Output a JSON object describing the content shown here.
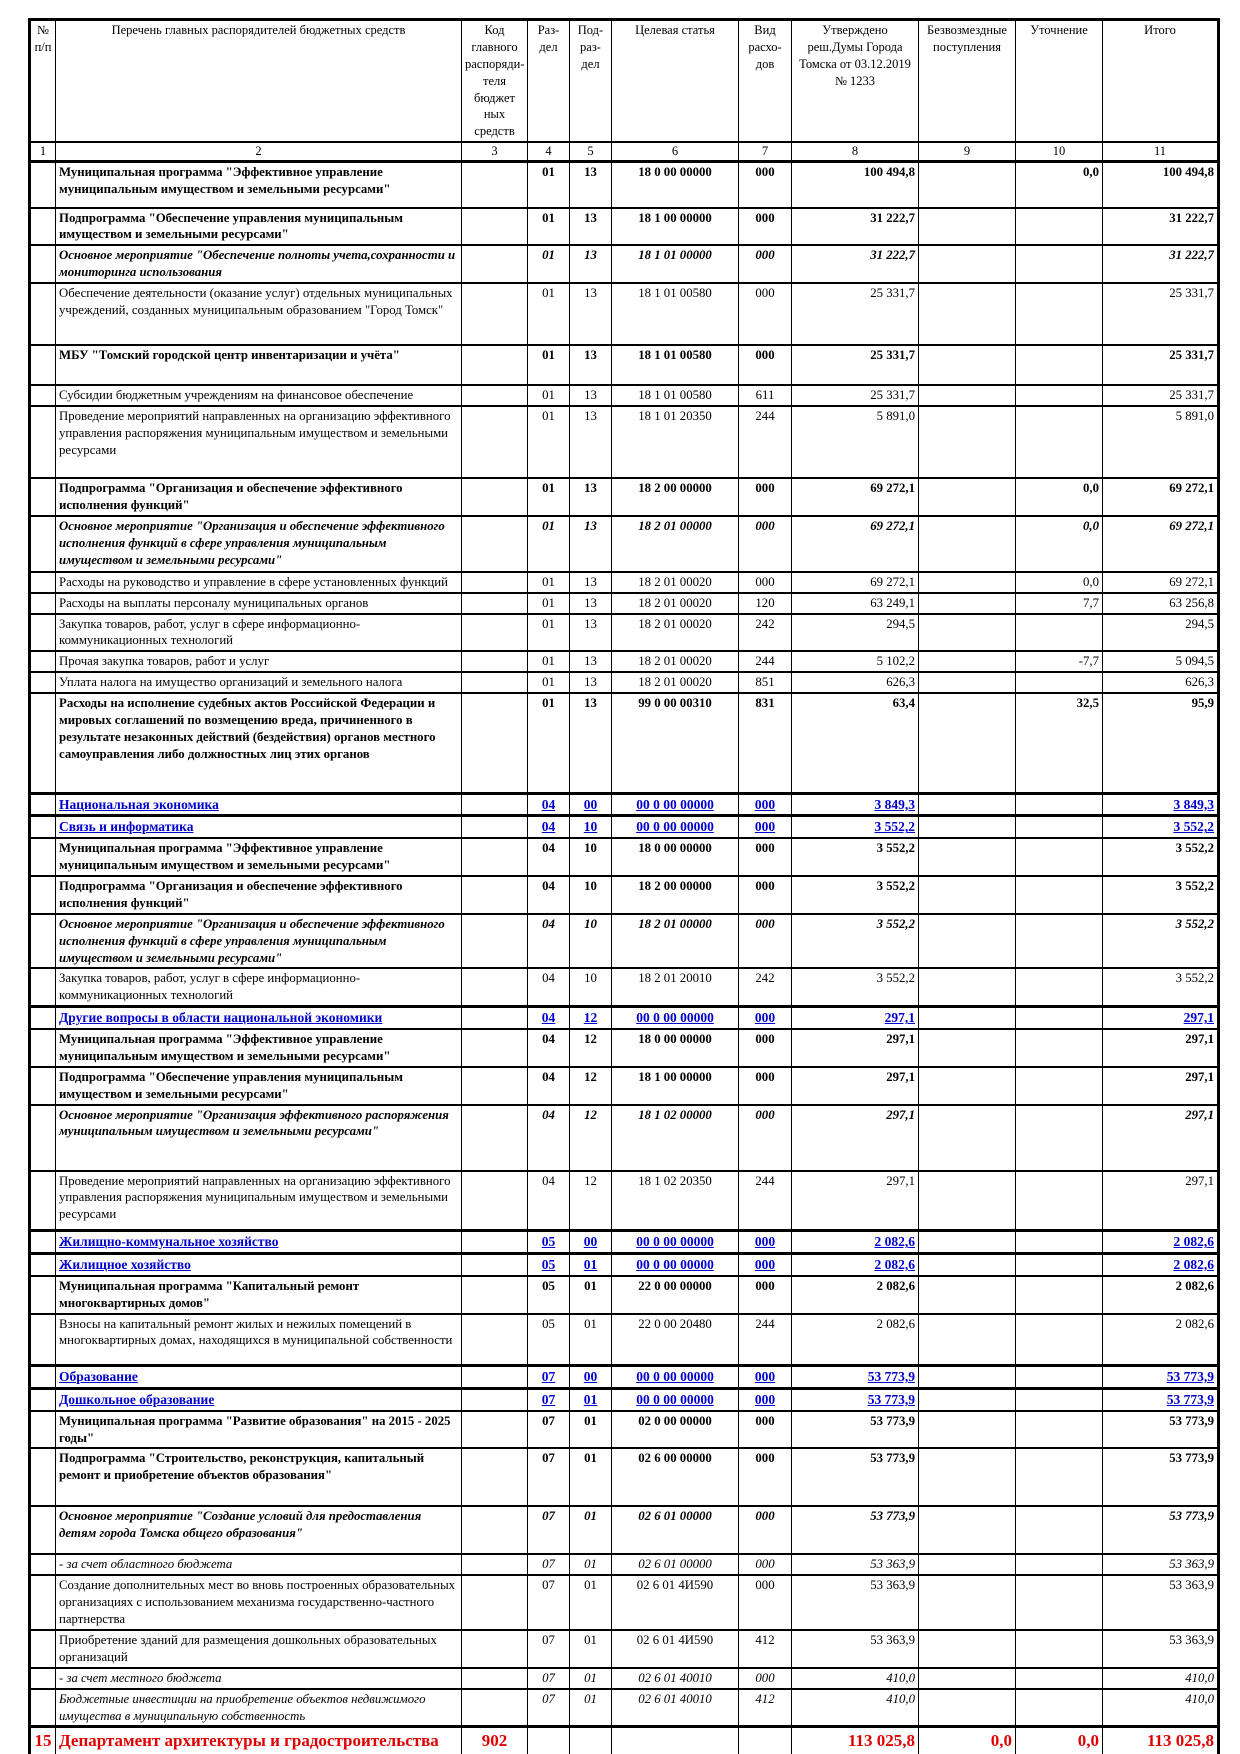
{
  "colors": {
    "section_blue": "#0000CE",
    "department_red": "#E10000",
    "grid": "#000000"
  },
  "table": {
    "header": {
      "cols": [
        {
          "label": "№ п/п",
          "num": "1"
        },
        {
          "label": "Перечень главных распорядителей бюджетных средств",
          "num": "2"
        },
        {
          "label": "Код главного распоряди- теля бюджет ных средств",
          "num": "3"
        },
        {
          "label": "Раз- дел",
          "num": "4"
        },
        {
          "label": "Под- раз- дел",
          "num": "5"
        },
        {
          "label": "Целевая статья",
          "num": "6"
        },
        {
          "label": "Вид расхо- дов",
          "num": "7"
        },
        {
          "label": "Утверждено реш.Думы Города Томска от 03.12.2019 № 1233",
          "num": "8"
        },
        {
          "label": "Безвозмездные поступления",
          "num": "9"
        },
        {
          "label": "Уточнение",
          "num": "10"
        },
        {
          "label": "Итого",
          "num": "11"
        }
      ]
    },
    "rows": [
      {
        "num": "",
        "name": "Муниципальная программа \"Эффективное управление муниципальным имуществом и земельными ресурсами\"",
        "code": "",
        "rz": "01",
        "pr": "13",
        "csr": "18 0 00 00000",
        "vr": "000",
        "approved": "100 494,8",
        "grants": "",
        "adj": "0,0",
        "total": "100 494,8",
        "style": "bold"
      },
      {
        "num": "",
        "name": "Подпрограмма \"Обеспечение управления муниципальным имуществом и земельными ресурсами\"",
        "code": "",
        "rz": "01",
        "pr": "13",
        "csr": "18 1 00 00000",
        "vr": "000",
        "approved": "31 222,7",
        "grants": "",
        "adj": "",
        "total": "31 222,7",
        "style": "bold"
      },
      {
        "num": "",
        "name": "Основное мероприятие \"Обеспечение полноты учета,сохранности и мониторинга использования",
        "code": "",
        "rz": "01",
        "pr": "13",
        "csr": "18 1 01 00000",
        "vr": "000",
        "approved": "31 222,7",
        "grants": "",
        "adj": "",
        "total": "31 222,7",
        "style": "bold-italic"
      },
      {
        "num": "",
        "name": "Обеспечение деятельности (оказание услуг) отдельных муниципальных учреждений, созданных муниципальным образованием \"Город Томск\"",
        "code": "",
        "rz": "01",
        "pr": "13",
        "csr": "18 1 01 00580",
        "vr": "000",
        "approved": "25 331,7",
        "grants": "",
        "adj": "",
        "total": "25 331,7",
        "style": "normal"
      },
      {
        "num": "",
        "name": "МБУ \"Томский городской центр инвентаризации и учёта\"",
        "code": "",
        "rz": "01",
        "pr": "13",
        "csr": "18 1 01 00580",
        "vr": "000",
        "approved": "25 331,7",
        "grants": "",
        "adj": "",
        "total": "25 331,7",
        "style": "bold"
      },
      {
        "num": "",
        "name": "Субсидии бюджетным учреждениям на финансовое обеспечение",
        "code": "",
        "rz": "01",
        "pr": "13",
        "csr": "18 1 01 00580",
        "vr": "611",
        "approved": "25 331,7",
        "grants": "",
        "adj": "",
        "total": "25 331,7",
        "style": "normal"
      },
      {
        "num": "",
        "name": "Проведение мероприятий направленных на организацию эффективного управления распоряжения муниципальным имуществом и земельными ресурсами",
        "code": "",
        "rz": "01",
        "pr": "13",
        "csr": "18 1 01 20350",
        "vr": "244",
        "approved": "5 891,0",
        "grants": "",
        "adj": "",
        "total": "5 891,0",
        "style": "normal"
      },
      {
        "num": "",
        "name": "Подпрограмма \"Организация и обеспечение эффективного исполнения функций\"",
        "code": "",
        "rz": "01",
        "pr": "13",
        "csr": "18 2 00 00000",
        "vr": "000",
        "approved": "69 272,1",
        "grants": "",
        "adj": "0,0",
        "total": "69 272,1",
        "style": "bold"
      },
      {
        "num": "",
        "name": "Основное мероприятие \"Организация и обеспечение эффективного исполнения функций в сфере управления муниципальным имуществом и земельными ресурсами\"",
        "code": "",
        "rz": "01",
        "pr": "13",
        "csr": "18 2 01 00000",
        "vr": "000",
        "approved": "69 272,1",
        "grants": "",
        "adj": "0,0",
        "total": "69 272,1",
        "style": "bold-italic"
      },
      {
        "num": "",
        "name": "Расходы на руководство и управление в сфере установленных функций",
        "code": "",
        "rz": "01",
        "pr": "13",
        "csr": "18 2 01 00020",
        "vr": "000",
        "approved": "69 272,1",
        "grants": "",
        "adj": "0,0",
        "total": "69 272,1",
        "style": "normal"
      },
      {
        "num": "",
        "name": "Расходы на выплаты персоналу муниципальных органов",
        "code": "",
        "rz": "01",
        "pr": "13",
        "csr": "18 2 01 00020",
        "vr": "120",
        "approved": "63 249,1",
        "grants": "",
        "adj": "7,7",
        "total": "63 256,8",
        "style": "normal"
      },
      {
        "num": "",
        "name": "Закупка товаров, работ, услуг в сфере информационно-коммуникационных технологий",
        "code": "",
        "rz": "01",
        "pr": "13",
        "csr": "18 2 01 00020",
        "vr": "242",
        "approved": "294,5",
        "grants": "",
        "adj": "",
        "total": "294,5",
        "style": "normal"
      },
      {
        "num": "",
        "name": "Прочая закупка товаров, работ и услуг",
        "code": "",
        "rz": "01",
        "pr": "13",
        "csr": "18 2 01 00020",
        "vr": "244",
        "approved": "5 102,2",
        "grants": "",
        "adj": "-7,7",
        "total": "5 094,5",
        "style": "normal"
      },
      {
        "num": "",
        "name": "Уплата налога на имущество организаций и земельного налога",
        "code": "",
        "rz": "01",
        "pr": "13",
        "csr": "18 2 01 00020",
        "vr": "851",
        "approved": "626,3",
        "grants": "",
        "adj": "",
        "total": "626,3",
        "style": "normal"
      },
      {
        "num": "",
        "name": "Расходы на исполнение судебных актов Российской Федерации и мировых соглашений по возмещению вреда, причиненного в результате незаконных действий (бездействия) органов местного самоуправления либо должностных лиц этих органов",
        "code": "",
        "rz": "01",
        "pr": "13",
        "csr": "99 0 00 00310",
        "vr": "831",
        "approved": "63,4",
        "grants": "",
        "adj": "32,5",
        "total": "95,9",
        "style": "bold"
      },
      {
        "num": "",
        "name": "Национальная экономика",
        "code": "",
        "rz": "04",
        "pr": "00",
        "csr": "00 0 00 00000",
        "vr": "000",
        "approved": "3 849,3",
        "grants": "",
        "adj": "",
        "total": "3 849,3",
        "style": "blue"
      },
      {
        "num": "",
        "name": "Связь и информатика",
        "code": "",
        "rz": "04",
        "pr": "10",
        "csr": "00 0 00 00000",
        "vr": "000",
        "approved": "3 552,2",
        "grants": "",
        "adj": "",
        "total": "3 552,2",
        "style": "blue"
      },
      {
        "num": "",
        "name": "Муниципальная программа \"Эффективное управление муниципальным имуществом и земельными ресурсами\"",
        "code": "",
        "rz": "04",
        "pr": "10",
        "csr": "18 0 00 00000",
        "vr": "000",
        "approved": "3 552,2",
        "grants": "",
        "adj": "",
        "total": "3 552,2",
        "style": "bold"
      },
      {
        "num": "",
        "name": "Подпрограмма \"Организация и обеспечение эффективного исполнения функций\"",
        "code": "",
        "rz": "04",
        "pr": "10",
        "csr": "18 2 00 00000",
        "vr": "000",
        "approved": "3 552,2",
        "grants": "",
        "adj": "",
        "total": "3 552,2",
        "style": "bold"
      },
      {
        "num": "",
        "name": "Основное мероприятие \"Организация и обеспечение эффективного исполнения функций в сфере управления муниципальным имуществом и земельными ресурсами\"",
        "code": "",
        "rz": "04",
        "pr": "10",
        "csr": "18 2 01 00000",
        "vr": "000",
        "approved": "3 552,2",
        "grants": "",
        "adj": "",
        "total": "3 552,2",
        "style": "bold-italic"
      },
      {
        "num": "",
        "name": "Закупка товаров, работ, услуг в сфере информационно-коммуникационных технологий",
        "code": "",
        "rz": "04",
        "pr": "10",
        "csr": "18 2 01 20010",
        "vr": "242",
        "approved": "3 552,2",
        "grants": "",
        "adj": "",
        "total": "3 552,2",
        "style": "normal"
      },
      {
        "num": "",
        "name": "Другие вопросы в области национальной экономики",
        "code": "",
        "rz": "04",
        "pr": "12",
        "csr": "00 0 00 00000",
        "vr": "000",
        "approved": "297,1",
        "grants": "",
        "adj": "",
        "total": "297,1",
        "style": "blue"
      },
      {
        "num": "",
        "name": "Муниципальная программа \"Эффективное управление муниципальным имуществом и земельными ресурсами\"",
        "code": "",
        "rz": "04",
        "pr": "12",
        "csr": "18 0 00 00000",
        "vr": "000",
        "approved": "297,1",
        "grants": "",
        "adj": "",
        "total": "297,1",
        "style": "bold"
      },
      {
        "num": "",
        "name": "Подпрограмма \"Обеспечение управления муниципальным имуществом и земельными ресурсами\"",
        "code": "",
        "rz": "04",
        "pr": "12",
        "csr": "18 1 00 00000",
        "vr": "000",
        "approved": "297,1",
        "grants": "",
        "adj": "",
        "total": "297,1",
        "style": "bold"
      },
      {
        "num": "",
        "name": "Основное мероприятие \"Организация эффективного распоряжения муниципальным имуществом и земельными ресурсами\"",
        "code": "",
        "rz": "04",
        "pr": "12",
        "csr": "18 1 02 00000",
        "vr": "000",
        "approved": "297,1",
        "grants": "",
        "adj": "",
        "total": "297,1",
        "style": "bold-italic"
      },
      {
        "num": "",
        "name": "Проведение мероприятий направленных на организацию эффективного управления распоряжения муниципальным имуществом и земельными ресурсами",
        "code": "",
        "rz": "04",
        "pr": "12",
        "csr": "18 1 02 20350",
        "vr": "244",
        "approved": "297,1",
        "grants": "",
        "adj": "",
        "total": "297,1",
        "style": "normal"
      },
      {
        "num": "",
        "name": "Жилищно-коммунальное хозяйство",
        "code": "",
        "rz": "05",
        "pr": "00",
        "csr": "00 0 00 00000",
        "vr": "000",
        "approved": "2 082,6",
        "grants": "",
        "adj": "",
        "total": "2 082,6",
        "style": "blue"
      },
      {
        "num": "",
        "name": "Жилищное хозяйство",
        "code": "",
        "rz": "05",
        "pr": "01",
        "csr": "00 0 00 00000",
        "vr": "000",
        "approved": "2 082,6",
        "grants": "",
        "adj": "",
        "total": "2 082,6",
        "style": "blue"
      },
      {
        "num": "",
        "name": "Муниципальная программа \"Капитальный ремонт многоквартирных домов\"",
        "code": "",
        "rz": "05",
        "pr": "01",
        "csr": "22 0 00 00000",
        "vr": "000",
        "approved": "2 082,6",
        "grants": "",
        "adj": "",
        "total": "2 082,6",
        "style": "bold"
      },
      {
        "num": "",
        "name": "Взносы на капитальный ремонт жилых и нежилых помещений в многоквартирных домах, находящихся в муниципальной собственности",
        "code": "",
        "rz": "05",
        "pr": "01",
        "csr": "22 0 00 20480",
        "vr": "244",
        "approved": "2 082,6",
        "grants": "",
        "adj": "",
        "total": "2 082,6",
        "style": "normal"
      },
      {
        "num": "",
        "name": "Образование",
        "code": "",
        "rz": "07",
        "pr": "00",
        "csr": "00 0 00 00000",
        "vr": "000",
        "approved": "53 773,9",
        "grants": "",
        "adj": "",
        "total": "53 773,9",
        "style": "blue"
      },
      {
        "num": "",
        "name": "Дошкольное образование",
        "code": "",
        "rz": "07",
        "pr": "01",
        "csr": "00 0 00 00000",
        "vr": "000",
        "approved": "53 773,9",
        "grants": "",
        "adj": "",
        "total": "53 773,9",
        "style": "blue"
      },
      {
        "num": "",
        "name": "Муниципальная программа \"Развитие образования\" на 2015 - 2025 годы\"",
        "code": "",
        "rz": "07",
        "pr": "01",
        "csr": "02 0 00 00000",
        "vr": "000",
        "approved": "53 773,9",
        "grants": "",
        "adj": "",
        "total": "53 773,9",
        "style": "bold"
      },
      {
        "num": "",
        "name": "Подпрограмма \"Строительство, реконструкция, капитальный ремонт и приобретение объектов образования\"",
        "code": "",
        "rz": "07",
        "pr": "01",
        "csr": "02 6 00 00000",
        "vr": "000",
        "approved": "53 773,9",
        "grants": "",
        "adj": "",
        "total": "53 773,9",
        "style": "bold"
      },
      {
        "num": "",
        "name": "Основное мероприятие \"Создание условий для предоставления детям города Томска общего образования\"",
        "code": "",
        "rz": "07",
        "pr": "01",
        "csr": "02 6 01 00000",
        "vr": "000",
        "approved": "53 773,9",
        "grants": "",
        "adj": "",
        "total": "53 773,9",
        "style": "bold-italic"
      },
      {
        "num": "",
        "name": "- за счет областного бюджета",
        "code": "",
        "rz": "07",
        "pr": "01",
        "csr": "02 6 01 00000",
        "vr": "000",
        "approved": "53 363,9",
        "grants": "",
        "adj": "",
        "total": "53 363,9",
        "style": "italic"
      },
      {
        "num": "",
        "name": "Создание дополнительных мест во вновь построенных образовательных организациях с использованием механизма государственно-частного партнерства",
        "code": "",
        "rz": "07",
        "pr": "01",
        "csr": "02 6 01 4И590",
        "vr": "000",
        "approved": "53 363,9",
        "grants": "",
        "adj": "",
        "total": "53 363,9",
        "style": "normal"
      },
      {
        "num": "",
        "name": "Приобретение зданий для размещения дошкольных образовательных организаций",
        "code": "",
        "rz": "07",
        "pr": "01",
        "csr": "02 6 01 4И590",
        "vr": "412",
        "approved": "53 363,9",
        "grants": "",
        "adj": "",
        "total": "53 363,9",
        "style": "normal"
      },
      {
        "num": "",
        "name": "- за счет местного бюджета",
        "code": "",
        "rz": "07",
        "pr": "01",
        "csr": "02 6 01 40010",
        "vr": "000",
        "approved": "410,0",
        "grants": "",
        "adj": "",
        "total": "410,0",
        "style": "italic"
      },
      {
        "num": "",
        "name": "Бюджетные инвестиции на приобретение объектов недвижимого имущества в муниципальную собственность",
        "code": "",
        "rz": "07",
        "pr": "01",
        "csr": "02 6 01 40010",
        "vr": "412",
        "approved": "410,0",
        "grants": "",
        "adj": "",
        "total": "410,0",
        "style": "italic"
      },
      {
        "num": "15",
        "name": "Департамент архитектуры и градостроительства администрации Города Томска",
        "code": "902",
        "rz": "",
        "pr": "",
        "csr": "",
        "vr": "",
        "approved": "113 025,8",
        "grants": "0,0",
        "adj": "0,0",
        "total": "113 025,8",
        "style": "red"
      }
    ]
  }
}
